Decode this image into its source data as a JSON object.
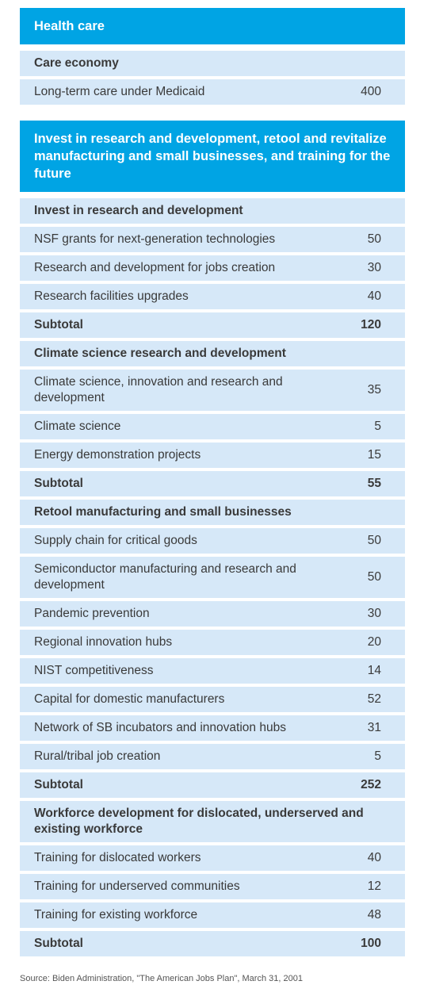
{
  "health": {
    "title": "Health care",
    "section": "Care economy",
    "item": {
      "label": "Long-term care under Medicaid",
      "value": "400"
    }
  },
  "rd": {
    "title": "Invest in research and development, retool and revitalize manufacturing and small businesses, and training for the future",
    "groups": [
      {
        "name": "Invest in research and development",
        "items": [
          {
            "label": "NSF grants for next-generation technologies",
            "value": "50"
          },
          {
            "label": "Research and development for jobs creation",
            "value": "30"
          },
          {
            "label": "Research facilities upgrades",
            "value": "40"
          }
        ],
        "subtotal_label": "Subtotal",
        "subtotal": "120"
      },
      {
        "name": "Climate science research and development",
        "items": [
          {
            "label": "Climate science, innovation and research and development",
            "value": "35"
          },
          {
            "label": "Climate science",
            "value": "5"
          },
          {
            "label": "Energy demonstration projects",
            "value": "15"
          }
        ],
        "subtotal_label": "Subtotal",
        "subtotal": "55"
      },
      {
        "name": "Retool manufacturing and small businesses",
        "items": [
          {
            "label": "Supply chain for critical goods",
            "value": "50"
          },
          {
            "label": "Semiconductor manufacturing and research and development",
            "value": "50"
          },
          {
            "label": "Pandemic prevention",
            "value": "30"
          },
          {
            "label": "Regional innovation hubs",
            "value": "20"
          },
          {
            "label": "NIST competitiveness",
            "value": "14"
          },
          {
            "label": "Capital for domestic manufacturers",
            "value": "52"
          },
          {
            "label": "Network of SB incubators and innovation hubs",
            "value": "31"
          },
          {
            "label": "Rural/tribal job creation",
            "value": "5"
          }
        ],
        "subtotal_label": "Subtotal",
        "subtotal": "252"
      },
      {
        "name": "Workforce development for dislocated, underserved and existing workforce",
        "items": [
          {
            "label": "Training for dislocated workers",
            "value": "40"
          },
          {
            "label": "Training for underserved communities",
            "value": "12"
          },
          {
            "label": "Training for existing workforce",
            "value": "48"
          }
        ],
        "subtotal_label": "Subtotal",
        "subtotal": "100"
      }
    ]
  },
  "source": "Source: Biden Administration, \"The American Jobs Plan\", March 31, 2001",
  "colors": {
    "header": "#00a4e4",
    "row": "#d6e8f8"
  }
}
